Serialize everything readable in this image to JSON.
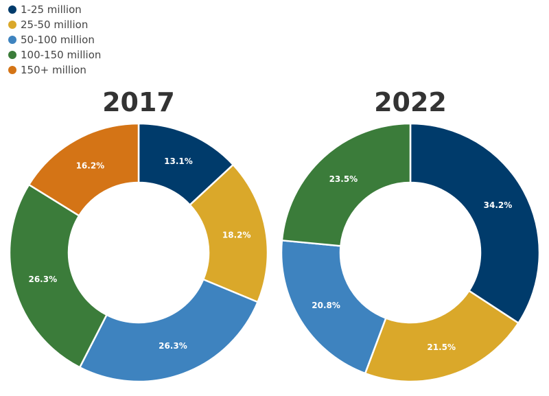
{
  "legend": [
    {
      "label": "1-25 million",
      "color": "#003b6b"
    },
    {
      "label": "25-50 million",
      "color": "#daa82a"
    },
    {
      "label": "50-100 million",
      "color": "#3e83bf"
    },
    {
      "label": "100-150 million",
      "color": "#3b7c3a"
    },
    {
      "label": "150+ million",
      "color": "#d47416"
    }
  ],
  "chart_data": [
    {
      "type": "pie",
      "title": "2017",
      "categories": [
        "1-25 million",
        "25-50 million",
        "50-100 million",
        "100-150 million",
        "150+ million"
      ],
      "values": [
        13.1,
        18.2,
        26.3,
        26.3,
        16.2
      ],
      "labels": [
        "13.1%",
        "18.2%",
        "26.3%",
        "26.3%",
        "16.2%"
      ],
      "colors": [
        "#003b6b",
        "#daa82a",
        "#3e83bf",
        "#3b7c3a",
        "#d47416"
      ]
    },
    {
      "type": "pie",
      "title": "2022",
      "categories": [
        "1-25 million",
        "25-50 million",
        "50-100 million",
        "100-150 million"
      ],
      "values": [
        34.2,
        21.5,
        20.8,
        23.5
      ],
      "labels": [
        "34.2%",
        "21.5%",
        "20.8%",
        "23.5%"
      ],
      "colors": [
        "#003b6b",
        "#daa82a",
        "#3e83bf",
        "#3b7c3a"
      ]
    }
  ]
}
